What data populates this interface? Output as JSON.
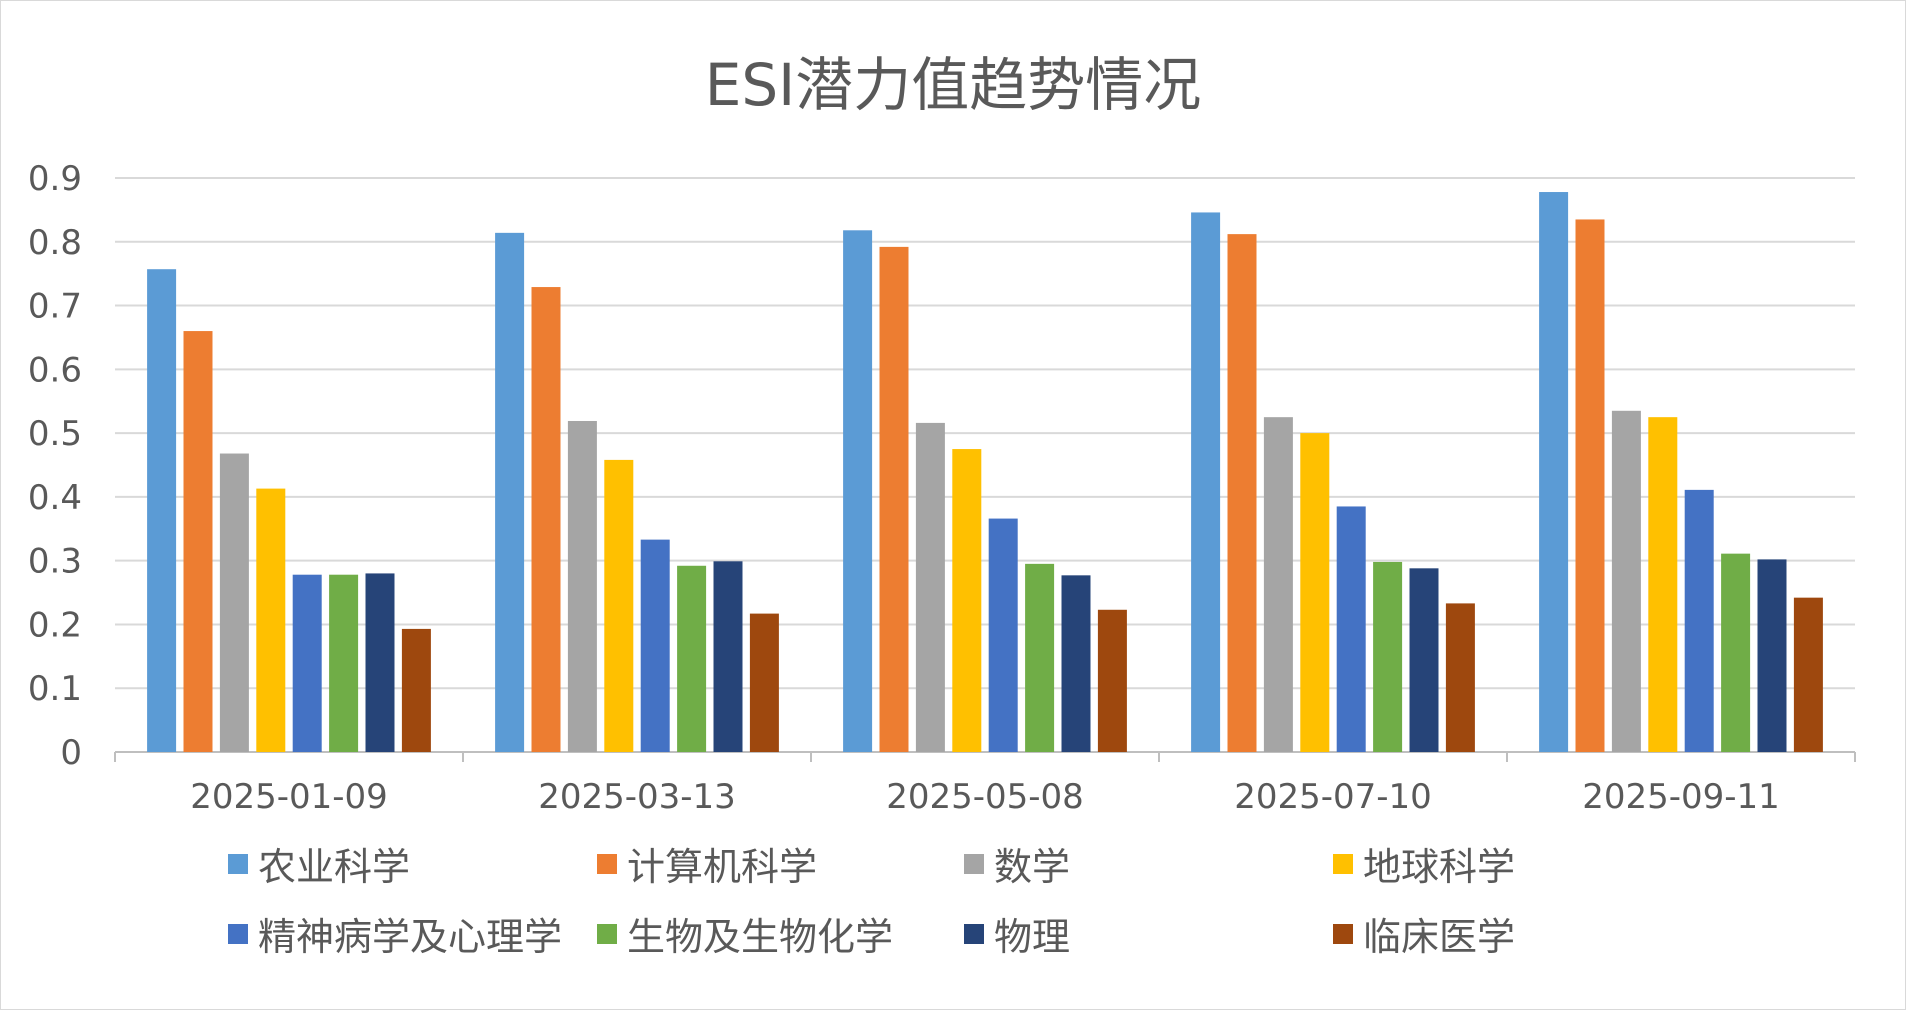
{
  "chart_data": {
    "type": "bar",
    "title": "ESI潜力值趋势情况",
    "categories": [
      "2025-01-09",
      "2025-03-13",
      "2025-05-08",
      "2025-07-10",
      "2025-09-11"
    ],
    "ylim": [
      0,
      0.9
    ],
    "yticks": [
      "0",
      "0.1",
      "0.2",
      "0.3",
      "0.4",
      "0.5",
      "0.6",
      "0.7",
      "0.8",
      "0.9"
    ],
    "grid": true,
    "legend_position": "bottom",
    "series": [
      {
        "name": "农业科学",
        "color": "#5b9bd5",
        "values": [
          0.757,
          0.814,
          0.818,
          0.846,
          0.878
        ]
      },
      {
        "name": "计算机科学",
        "color": "#ed7d31",
        "values": [
          0.66,
          0.729,
          0.792,
          0.812,
          0.835
        ]
      },
      {
        "name": "数学",
        "color": "#a5a5a5",
        "values": [
          0.468,
          0.519,
          0.516,
          0.525,
          0.535
        ]
      },
      {
        "name": "地球科学",
        "color": "#ffc000",
        "values": [
          0.413,
          0.458,
          0.475,
          0.5,
          0.525
        ]
      },
      {
        "name": "精神病学及心理学",
        "color": "#4472c4",
        "values": [
          0.278,
          0.333,
          0.366,
          0.385,
          0.411
        ]
      },
      {
        "name": "生物及生物化学",
        "color": "#70ad47",
        "values": [
          0.278,
          0.292,
          0.295,
          0.298,
          0.311
        ]
      },
      {
        "name": "物理",
        "color": "#264478",
        "values": [
          0.28,
          0.299,
          0.277,
          0.288,
          0.302
        ]
      },
      {
        "name": "临床医学",
        "color": "#9e480e",
        "values": [
          0.193,
          0.217,
          0.223,
          0.233,
          0.242
        ]
      }
    ]
  }
}
